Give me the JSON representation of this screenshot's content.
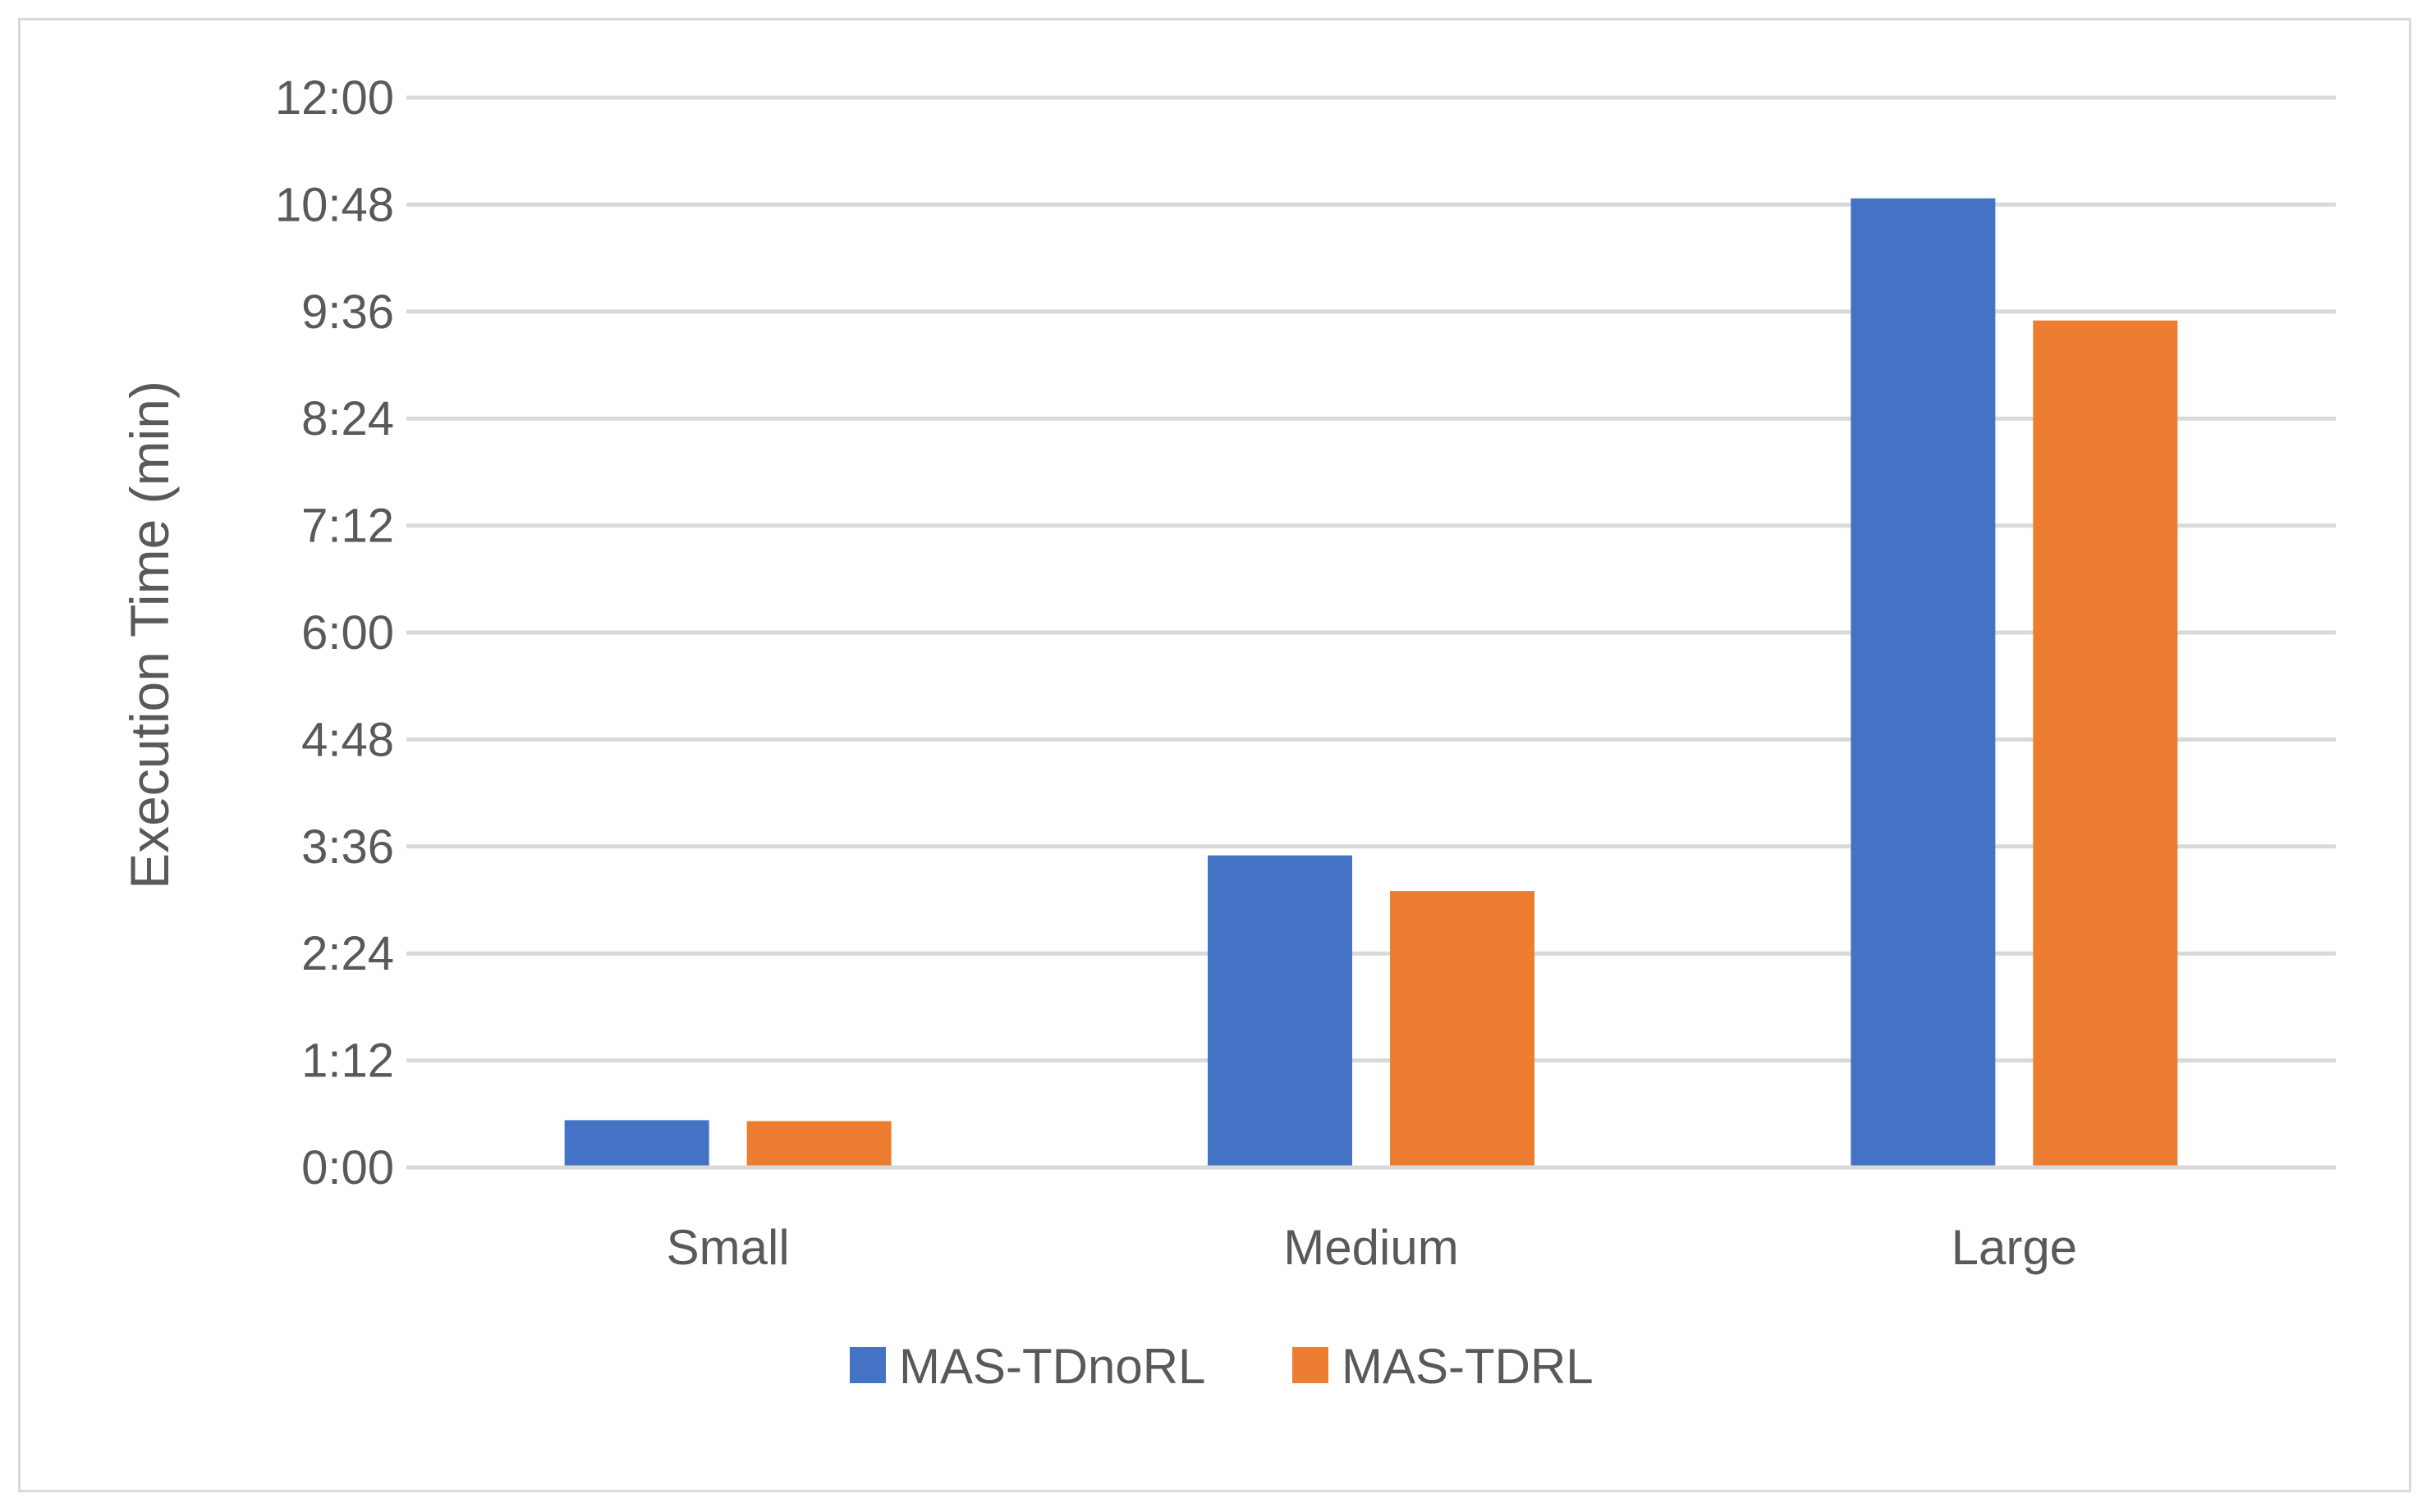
{
  "chart_data": {
    "type": "bar",
    "ylabel": "Execution Time (min)",
    "xlabel": "",
    "categories": [
      "Small",
      "Medium",
      "Large"
    ],
    "series": [
      {
        "name": "MAS-TDnoRL",
        "color": "#4472C4",
        "values": [
          0.53,
          3.5,
          10.87
        ]
      },
      {
        "name": "MAS-TDRL",
        "color": "#ED7D31",
        "values": [
          0.52,
          3.1,
          9.5
        ]
      }
    ],
    "ylim": [
      0,
      12
    ],
    "yticks": [
      0,
      1.2,
      2.4,
      3.6,
      4.8,
      6.0,
      7.2,
      8.4,
      9.6,
      10.8,
      12.0
    ],
    "ytick_labels": [
      "0:00",
      "1:12",
      "2:24",
      "3:36",
      "4:48",
      "6:00",
      "7:12",
      "8:24",
      "9:36",
      "10:48",
      "12:00"
    ],
    "grid": true,
    "legend_position": "bottom"
  }
}
